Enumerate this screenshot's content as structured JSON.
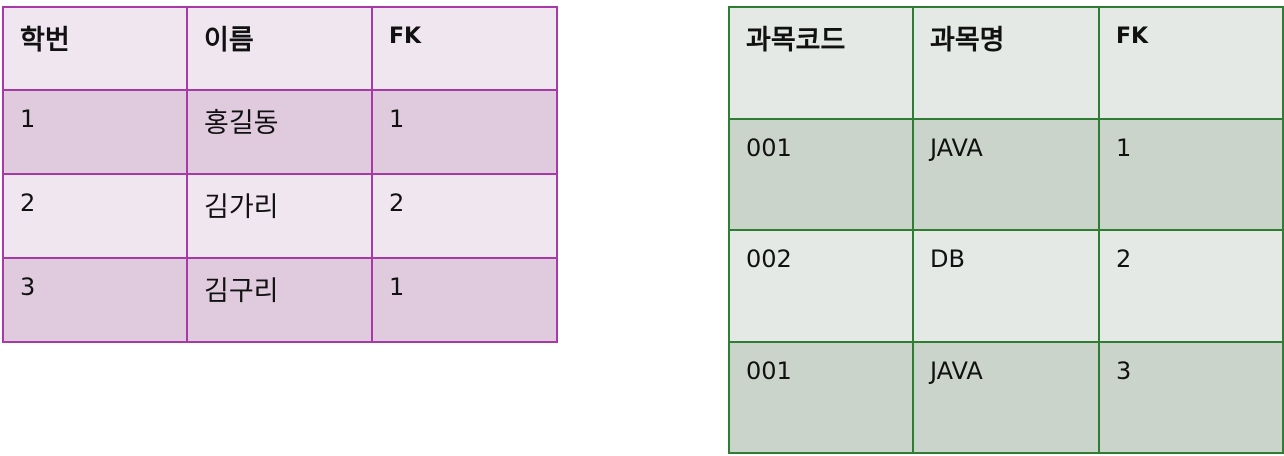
{
  "students_table": {
    "headers": [
      "학번",
      "이름",
      "FK"
    ],
    "rows": [
      [
        "1",
        "홍길동",
        "1"
      ],
      [
        "2",
        "김가리",
        "2"
      ],
      [
        "3",
        "김구리",
        "1"
      ]
    ],
    "colors": {
      "border": "#a83aa8",
      "header_bg": "#f0e6ef",
      "alt_bg": "#dfcbdd"
    }
  },
  "courses_table": {
    "headers": [
      "과목코드",
      "과목명",
      "FK"
    ],
    "rows": [
      [
        "001",
        "JAVA",
        "1"
      ],
      [
        "002",
        "DB",
        "2"
      ],
      [
        "001",
        "JAVA",
        "3"
      ]
    ],
    "colors": {
      "border": "#2e7d32",
      "header_bg": "#e4e9e5",
      "alt_bg": "#cbd4cb"
    }
  }
}
